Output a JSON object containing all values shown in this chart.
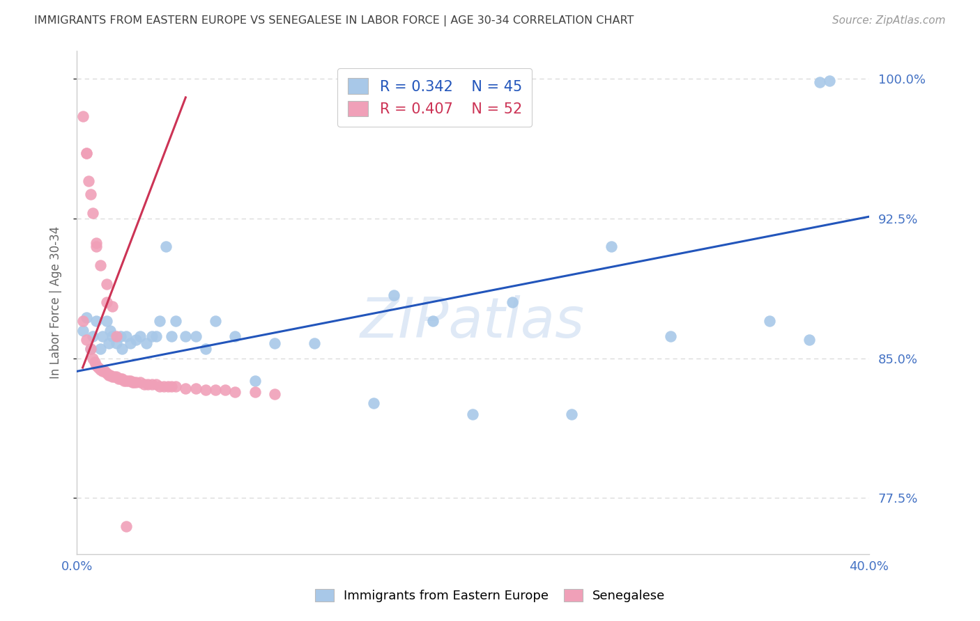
{
  "title": "IMMIGRANTS FROM EASTERN EUROPE VS SENEGALESE IN LABOR FORCE | AGE 30-34 CORRELATION CHART",
  "source": "Source: ZipAtlas.com",
  "ylabel": "In Labor Force | Age 30-34",
  "xlim": [
    0.0,
    0.4
  ],
  "ylim": [
    0.745,
    1.015
  ],
  "yticks": [
    0.775,
    0.85,
    0.925,
    1.0
  ],
  "ytick_labels": [
    "77.5%",
    "85.0%",
    "92.5%",
    "100.0%"
  ],
  "xticks": [
    0.0,
    0.1,
    0.2,
    0.3,
    0.4
  ],
  "xtick_labels": [
    "0.0%",
    "",
    "",
    "",
    "40.0%"
  ],
  "blue_R": 0.342,
  "blue_N": 45,
  "pink_R": 0.407,
  "pink_N": 52,
  "blue_color": "#a8c8e8",
  "blue_line_color": "#2255bb",
  "pink_color": "#f0a0b8",
  "pink_line_color": "#cc3355",
  "blue_scatter_x": [
    0.003,
    0.005,
    0.007,
    0.008,
    0.01,
    0.012,
    0.013,
    0.015,
    0.016,
    0.017,
    0.018,
    0.02,
    0.022,
    0.023,
    0.025,
    0.027,
    0.03,
    0.032,
    0.035,
    0.038,
    0.04,
    0.042,
    0.045,
    0.048,
    0.05,
    0.055,
    0.06,
    0.065,
    0.07,
    0.08,
    0.09,
    0.1,
    0.12,
    0.15,
    0.16,
    0.18,
    0.2,
    0.22,
    0.25,
    0.27,
    0.3,
    0.35,
    0.37,
    0.375,
    0.38
  ],
  "blue_scatter_y": [
    0.865,
    0.872,
    0.855,
    0.862,
    0.87,
    0.855,
    0.862,
    0.87,
    0.858,
    0.865,
    0.862,
    0.858,
    0.862,
    0.855,
    0.862,
    0.858,
    0.86,
    0.862,
    0.858,
    0.862,
    0.862,
    0.87,
    0.91,
    0.862,
    0.87,
    0.862,
    0.862,
    0.855,
    0.87,
    0.862,
    0.838,
    0.858,
    0.858,
    0.826,
    0.884,
    0.87,
    0.82,
    0.88,
    0.82,
    0.91,
    0.862,
    0.87,
    0.86,
    0.998,
    0.999
  ],
  "pink_scatter_x": [
    0.003,
    0.005,
    0.007,
    0.008,
    0.009,
    0.01,
    0.011,
    0.012,
    0.013,
    0.014,
    0.015,
    0.016,
    0.017,
    0.018,
    0.019,
    0.02,
    0.021,
    0.022,
    0.023,
    0.024,
    0.025,
    0.026,
    0.027,
    0.028,
    0.029,
    0.03,
    0.032,
    0.034,
    0.036,
    0.038,
    0.04,
    0.042,
    0.044,
    0.046,
    0.048,
    0.05,
    0.055,
    0.06,
    0.065,
    0.07,
    0.075,
    0.08,
    0.09,
    0.1,
    0.005,
    0.006,
    0.008,
    0.01,
    0.012,
    0.015,
    0.018,
    0.025
  ],
  "pink_scatter_y": [
    0.87,
    0.86,
    0.855,
    0.85,
    0.848,
    0.846,
    0.845,
    0.844,
    0.843,
    0.843,
    0.842,
    0.841,
    0.841,
    0.84,
    0.84,
    0.84,
    0.839,
    0.839,
    0.839,
    0.838,
    0.838,
    0.838,
    0.838,
    0.837,
    0.837,
    0.837,
    0.837,
    0.836,
    0.836,
    0.836,
    0.836,
    0.835,
    0.835,
    0.835,
    0.835,
    0.835,
    0.834,
    0.834,
    0.833,
    0.833,
    0.833,
    0.832,
    0.832,
    0.831,
    0.96,
    0.945,
    0.928,
    0.912,
    0.9,
    0.89,
    0.878,
    0.76
  ],
  "pink_extra_x": [
    0.003,
    0.005,
    0.007,
    0.01,
    0.015,
    0.02
  ],
  "pink_extra_y": [
    0.98,
    0.96,
    0.938,
    0.91,
    0.88,
    0.862
  ],
  "blue_trend_x": [
    0.0,
    0.4
  ],
  "blue_trend_y": [
    0.843,
    0.926
  ],
  "pink_trend_x": [
    0.003,
    0.055
  ],
  "pink_trend_y": [
    0.845,
    0.99
  ],
  "watermark_text": "ZIPatlas",
  "background_color": "#ffffff",
  "grid_color": "#d8d8d8",
  "axis_color": "#cccccc",
  "label_color": "#4472c4",
  "title_color": "#404040"
}
